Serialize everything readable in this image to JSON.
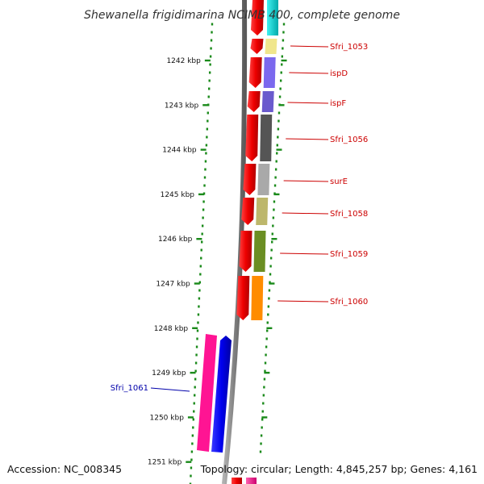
{
  "title": "Shewanella frigidimarina NCIMB 400, complete genome",
  "accession": "Accession: NC_008345",
  "summary": "Topology: circular; Length: 4,845,257 bp; Genes: 4,161",
  "colors": {
    "backbone": "#808080",
    "tick": "#1a8a1a",
    "label_forward": "#cc0000",
    "label_reverse": "#0000aa"
  },
  "ticks": [
    "1242 kbp",
    "1243 kbp",
    "1244 kbp",
    "1245 kbp",
    "1246 kbp",
    "1247 kbp",
    "1248 kbp",
    "1249 kbp",
    "1250 kbp",
    "1251 kbp"
  ],
  "genes": [
    {
      "name": "Sfri_1053",
      "strand": "+",
      "color": "#f0e68c"
    },
    {
      "name": "ispD",
      "strand": "+",
      "color": "#7b68ee"
    },
    {
      "name": "ispF",
      "strand": "+",
      "color": "#6a5acd"
    },
    {
      "name": "Sfri_1056",
      "strand": "+",
      "color": "#555555"
    },
    {
      "name": "surE",
      "strand": "+",
      "color": "#a9a9a9"
    },
    {
      "name": "Sfri_1058",
      "strand": "+",
      "color": "#bdb76b"
    },
    {
      "name": "Sfri_1059",
      "strand": "+",
      "color": "#6b8e23"
    },
    {
      "name": "Sfri_1060",
      "strand": "+",
      "color": "#ff8c00"
    },
    {
      "name": "Sfri_1061",
      "strand": "-",
      "color": "#ff1493"
    }
  ]
}
